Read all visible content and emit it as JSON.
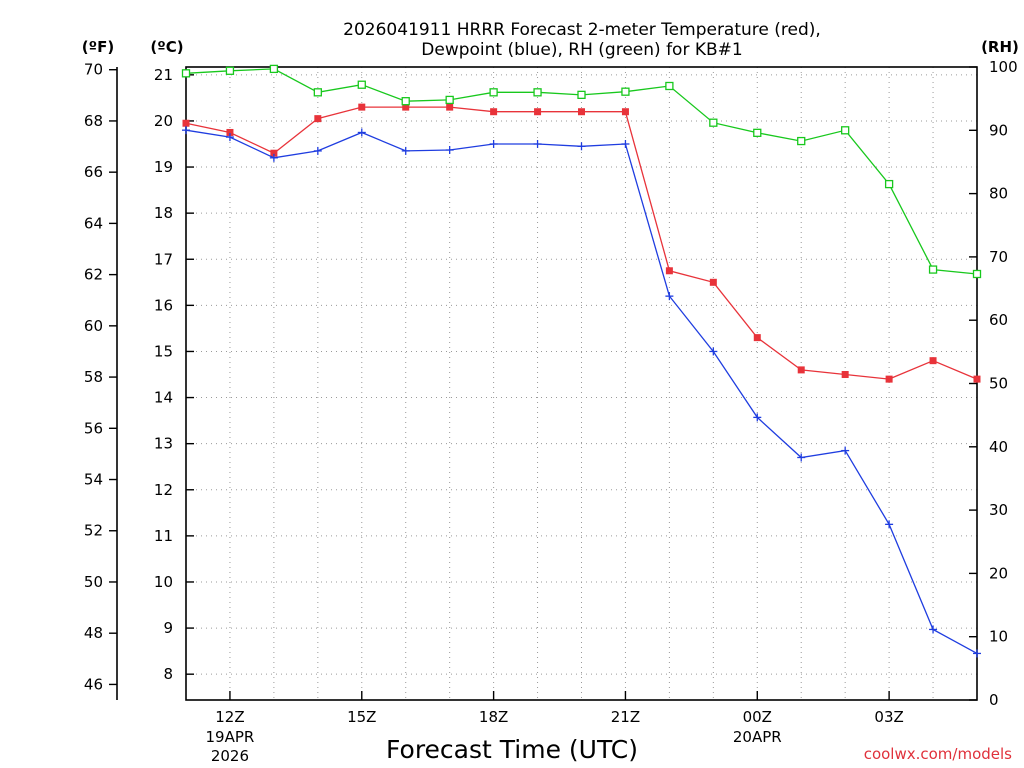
{
  "chart_data": {
    "type": "line",
    "title_line1": "2026041911 HRRR Forecast 2-meter Temperature (red),",
    "title_line2": "Dewpoint (blue), RH (green) for KB#1",
    "xlabel": "Forecast Time (UTC)",
    "credit": "coolwx.com/models",
    "units": {
      "left_f": "(ºF)",
      "left_c": "(ºC)",
      "right": "(RH)"
    },
    "x_hours": [
      11,
      12,
      13,
      14,
      15,
      16,
      17,
      18,
      19,
      20,
      21,
      22,
      23,
      24,
      25,
      26,
      27,
      28,
      29
    ],
    "x_ticks": [
      {
        "hour": 12,
        "label": "12Z",
        "sub1": "19APR",
        "sub2": "2026"
      },
      {
        "hour": 15,
        "label": "15Z",
        "sub1": "",
        "sub2": ""
      },
      {
        "hour": 18,
        "label": "18Z",
        "sub1": "",
        "sub2": ""
      },
      {
        "hour": 21,
        "label": "21Z",
        "sub1": "",
        "sub2": ""
      },
      {
        "hour": 24,
        "label": "00Z",
        "sub1": "20APR",
        "sub2": ""
      },
      {
        "hour": 27,
        "label": "03Z",
        "sub1": "",
        "sub2": ""
      }
    ],
    "f_ticks": [
      46,
      48,
      50,
      52,
      54,
      56,
      58,
      60,
      62,
      64,
      66,
      68,
      70
    ],
    "c_ticks": [
      8,
      9,
      10,
      11,
      12,
      13,
      14,
      15,
      16,
      17,
      18,
      19,
      20,
      21
    ],
    "rh_ticks": [
      0,
      10,
      20,
      30,
      40,
      50,
      60,
      70,
      80,
      90,
      100
    ],
    "c_range": [
      7.44,
      21.17
    ],
    "rh_range": [
      0,
      100
    ],
    "series": [
      {
        "name": "Temperature",
        "color": "#e8333a",
        "marker": "filled-square",
        "unit": "C",
        "values": [
          19.95,
          19.75,
          19.3,
          20.05,
          20.3,
          20.3,
          20.3,
          20.2,
          20.2,
          20.2,
          20.2,
          16.75,
          16.5,
          15.3,
          14.6,
          14.5,
          14.4,
          14.8,
          14.4
        ]
      },
      {
        "name": "Dewpoint",
        "color": "#1f3de0",
        "marker": "plus",
        "unit": "C",
        "values": [
          19.8,
          19.65,
          19.2,
          19.35,
          19.75,
          19.35,
          19.37,
          19.5,
          19.5,
          19.45,
          19.5,
          16.2,
          15.0,
          13.57,
          12.7,
          12.85,
          11.25,
          8.97,
          8.45
        ]
      },
      {
        "name": "RH",
        "color": "#18c81d",
        "marker": "open-square",
        "unit": "RH",
        "values": [
          99.0,
          99.4,
          99.7,
          96.0,
          97.2,
          94.6,
          94.8,
          96.0,
          96.0,
          95.6,
          96.1,
          97.0,
          91.2,
          89.6,
          88.3,
          90.0,
          81.5,
          68.0,
          67.3
        ]
      }
    ]
  }
}
